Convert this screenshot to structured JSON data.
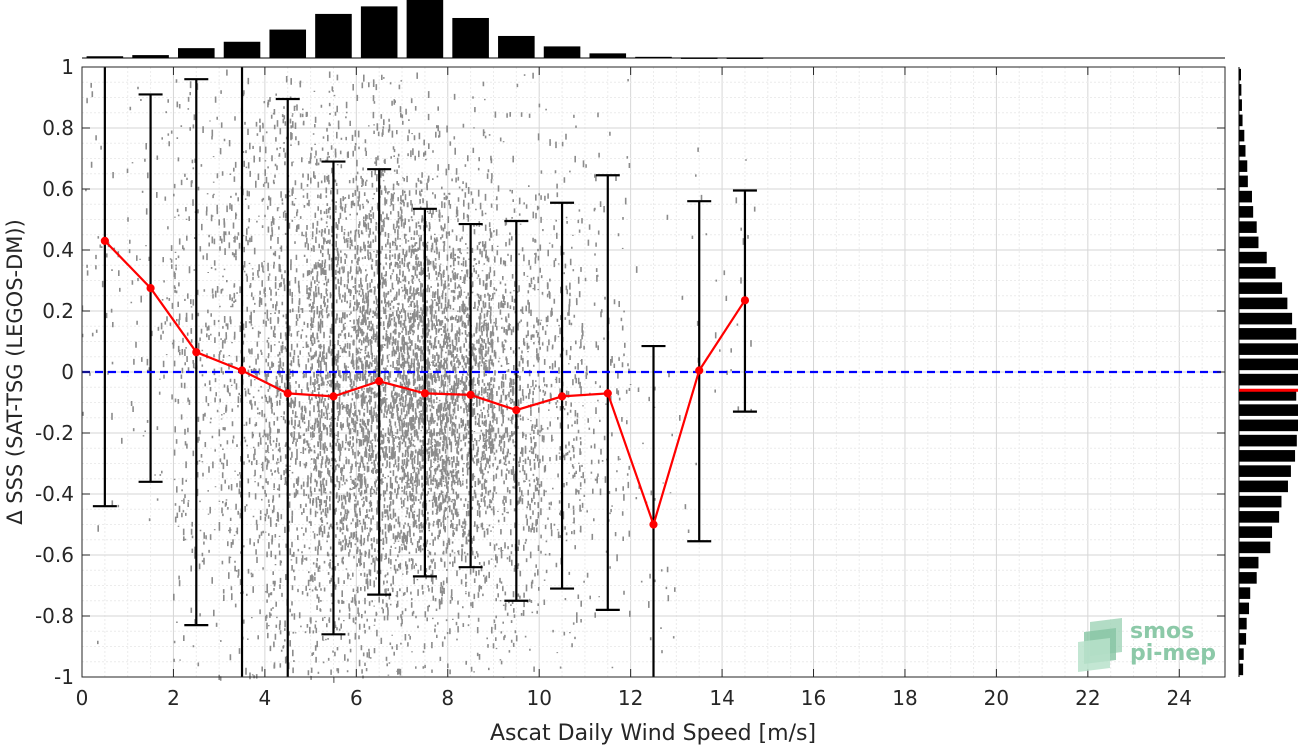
{
  "chart_data": [
    {
      "type": "scatter",
      "title": "",
      "xlabel": "Ascat Daily Wind Speed [m/s]",
      "ylabel": "Δ SSS (SAT-TSG (LEGOS-DM))",
      "xlim": [
        0,
        25
      ],
      "ylim": [
        -1,
        1
      ],
      "xticks": [
        0,
        2,
        4,
        6,
        8,
        10,
        12,
        14,
        16,
        18,
        20,
        22,
        24
      ],
      "xtick_labels": [
        "0",
        "2",
        "4",
        "6",
        "8",
        "10",
        "12",
        "14",
        "16",
        "18",
        "20",
        "22",
        "24"
      ],
      "yticks": [
        -1,
        -0.8,
        -0.6,
        -0.4,
        -0.2,
        0,
        0.2,
        0.4,
        0.6,
        0.8,
        1
      ],
      "ytick_labels": [
        "-1",
        "-0.8",
        "-0.6",
        "-0.4",
        "-0.2",
        "0",
        "0.2",
        "0.4",
        "0.6",
        "0.8",
        "1"
      ],
      "grid": true,
      "scatter_color": "#808080",
      "scatter_note_xrange": [
        0,
        13.5
      ],
      "series": [
        {
          "kind": "binned-mean",
          "color": "#ff0000",
          "x": [
            0.5,
            1.5,
            2.5,
            3.5,
            4.5,
            5.5,
            6.5,
            7.5,
            8.5,
            9.5,
            10.5,
            11.5,
            12.5,
            13.5,
            14.5
          ],
          "y": [
            0.43,
            0.275,
            0.065,
            0.005,
            -0.07,
            -0.08,
            -0.03,
            -0.07,
            -0.075,
            -0.125,
            -0.08,
            -0.07,
            -0.5,
            0.005,
            0.235
          ]
        },
        {
          "kind": "errorbar",
          "color": "#000000",
          "x": [
            0.5,
            1.5,
            2.5,
            3.5,
            4.5,
            5.5,
            6.5,
            7.5,
            8.5,
            9.5,
            10.5,
            11.5,
            12.5,
            13.5,
            14.5
          ],
          "low": [
            -0.44,
            -0.36,
            -0.83,
            -1.3,
            -1.03,
            -0.86,
            -0.73,
            -0.67,
            -0.64,
            -0.75,
            -0.71,
            -0.78,
            -1.08,
            -0.555,
            -0.13
          ],
          "high": [
            1.3,
            0.91,
            0.96,
            1.3,
            0.895,
            0.69,
            0.665,
            0.535,
            0.485,
            0.495,
            0.555,
            0.645,
            0.085,
            0.56,
            0.595
          ]
        },
        {
          "kind": "reference-line",
          "color": "#0000ff",
          "y": 0
        }
      ]
    },
    {
      "type": "bar",
      "orientation": "vertical",
      "position": "top",
      "categories": [
        0.5,
        1.5,
        2.5,
        3.5,
        4.5,
        5.5,
        6.5,
        7.5,
        8.5,
        9.5,
        10.5,
        11.5,
        12.5,
        13.5,
        14.5
      ],
      "values": [
        0.03,
        0.05,
        0.17,
        0.28,
        0.49,
        0.76,
        0.89,
        1.0,
        0.69,
        0.38,
        0.2,
        0.08,
        0.02,
        0.01,
        0.01
      ],
      "color": "#000000"
    },
    {
      "type": "bar",
      "orientation": "horizontal",
      "position": "right",
      "categories": [
        -0.975,
        -0.925,
        -0.875,
        -0.825,
        -0.775,
        -0.725,
        -0.675,
        -0.625,
        -0.575,
        -0.525,
        -0.475,
        -0.425,
        -0.375,
        -0.325,
        -0.275,
        -0.225,
        -0.175,
        -0.125,
        -0.075,
        -0.025,
        0.025,
        0.075,
        0.125,
        0.175,
        0.225,
        0.275,
        0.325,
        0.375,
        0.425,
        0.475,
        0.525,
        0.575,
        0.625,
        0.675,
        0.725,
        0.775,
        0.825,
        0.875,
        0.925,
        0.975
      ],
      "values": [
        0.07,
        0.08,
        0.12,
        0.13,
        0.17,
        0.19,
        0.3,
        0.33,
        0.53,
        0.56,
        0.68,
        0.72,
        0.83,
        0.88,
        0.95,
        0.98,
        1.0,
        1.0,
        0.97,
        1.0,
        1.0,
        1.0,
        0.97,
        0.9,
        0.82,
        0.73,
        0.62,
        0.47,
        0.33,
        0.3,
        0.24,
        0.22,
        0.15,
        0.14,
        0.11,
        0.09,
        0.06,
        0.05,
        0.04,
        0.02
      ],
      "mean_marker": -0.06,
      "mean_color": "#ff0000",
      "color": "#000000"
    }
  ],
  "logo": {
    "line1": "smos",
    "line2": "pi-mep",
    "color": "#6aaf8a"
  }
}
